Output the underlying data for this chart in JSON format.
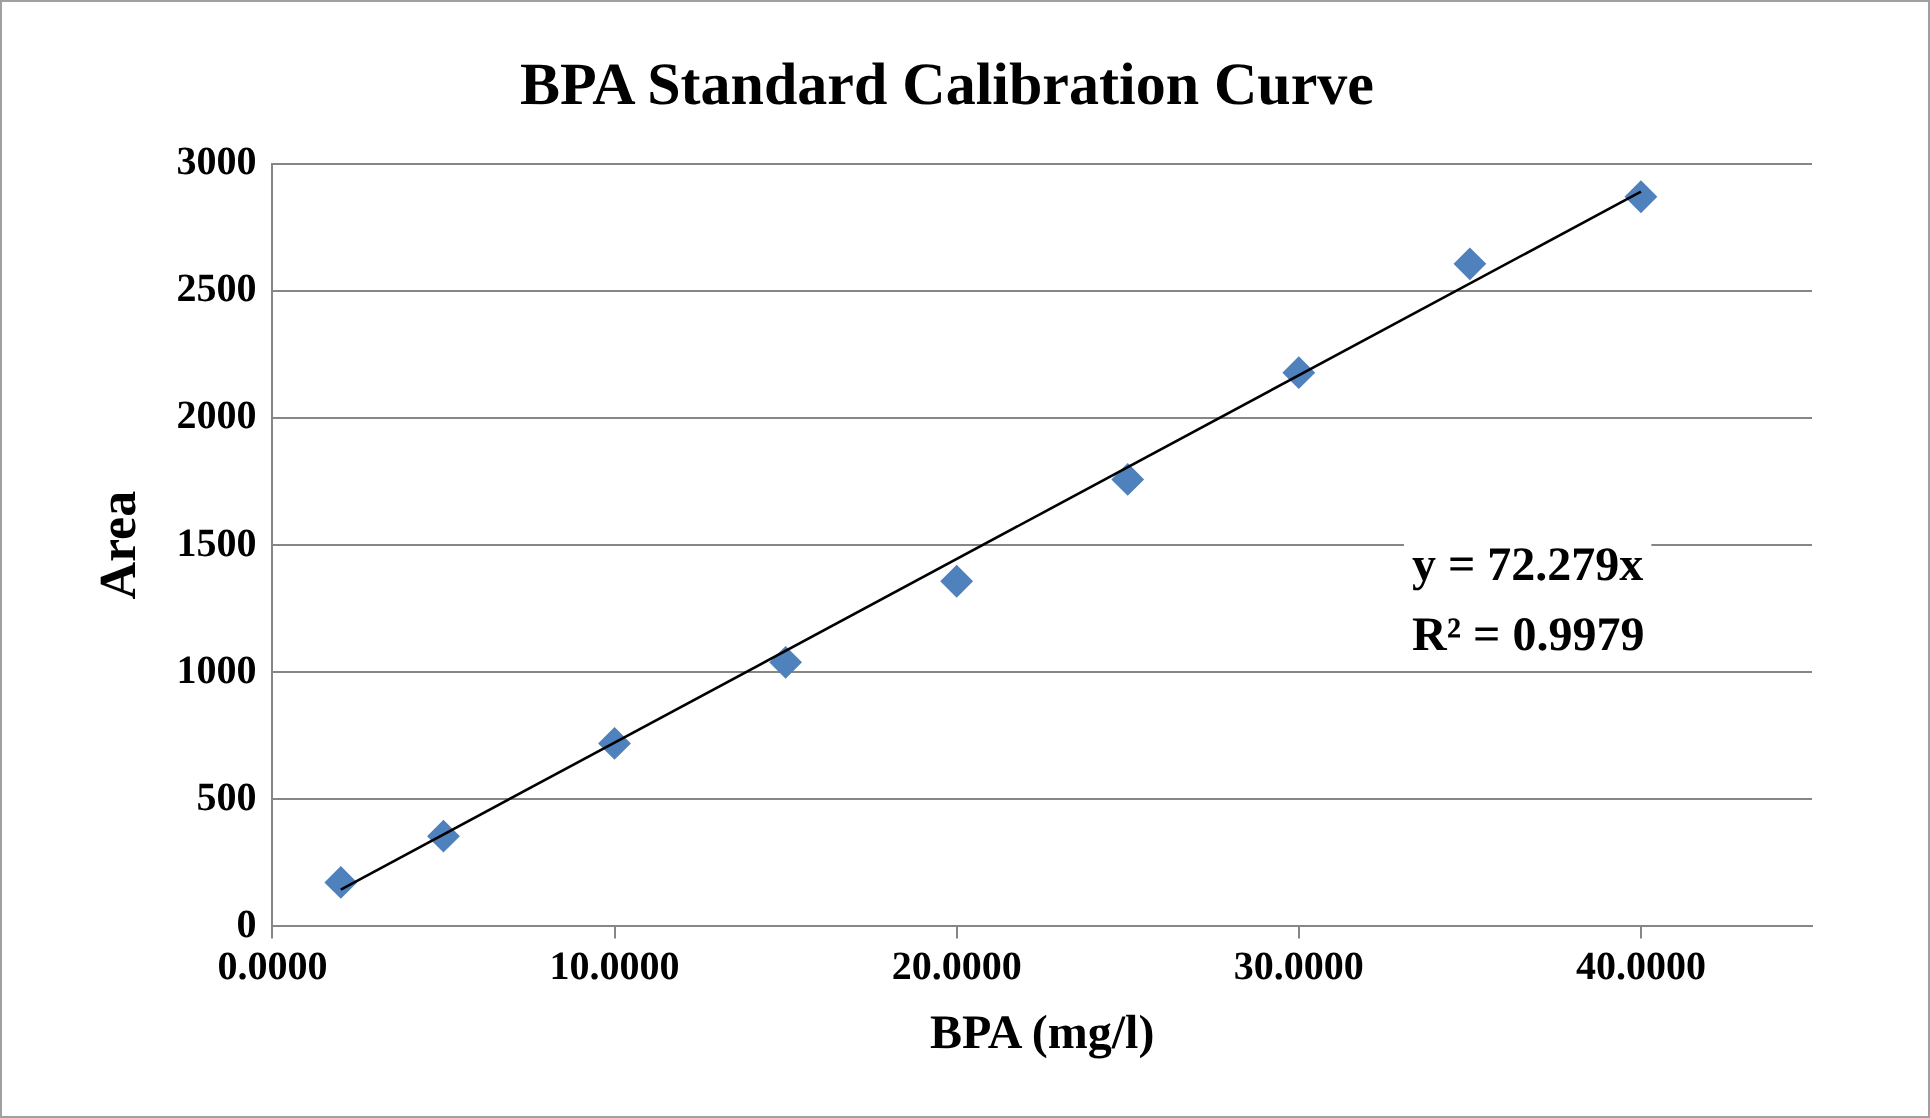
{
  "chart_data": {
    "type": "scatter",
    "title": "BPA Standard Calibration Curve",
    "xlabel": "BPA (mg/l)",
    "ylabel": "Area",
    "xlim": [
      0,
      45
    ],
    "xticks": [
      {
        "value": 0,
        "label": "0.0000"
      },
      {
        "value": 10,
        "label": "10.0000"
      },
      {
        "value": 20,
        "label": "20.0000"
      },
      {
        "value": 30,
        "label": "30.0000"
      },
      {
        "value": 40,
        "label": "40.0000"
      }
    ],
    "ylim": [
      0,
      3000
    ],
    "yticks": [
      0,
      500,
      1000,
      1500,
      2000,
      2500,
      3000
    ],
    "grid": "y",
    "legend": false,
    "series": [
      {
        "type": "scatter",
        "marker": "diamond",
        "color": "#4f81bd",
        "x": [
          2,
          5,
          10,
          15,
          20,
          25,
          30,
          35,
          40
        ],
        "values": [
          173,
          355,
          720,
          1039,
          1358,
          1759,
          2179,
          2607,
          2871
        ]
      },
      {
        "type": "line",
        "marker": "none",
        "color": "#000000",
        "x": [
          2,
          40
        ],
        "values": [
          145,
          2891
        ]
      }
    ],
    "annotations": [
      "y = 72.279x",
      "R² = 0.9979"
    ]
  }
}
